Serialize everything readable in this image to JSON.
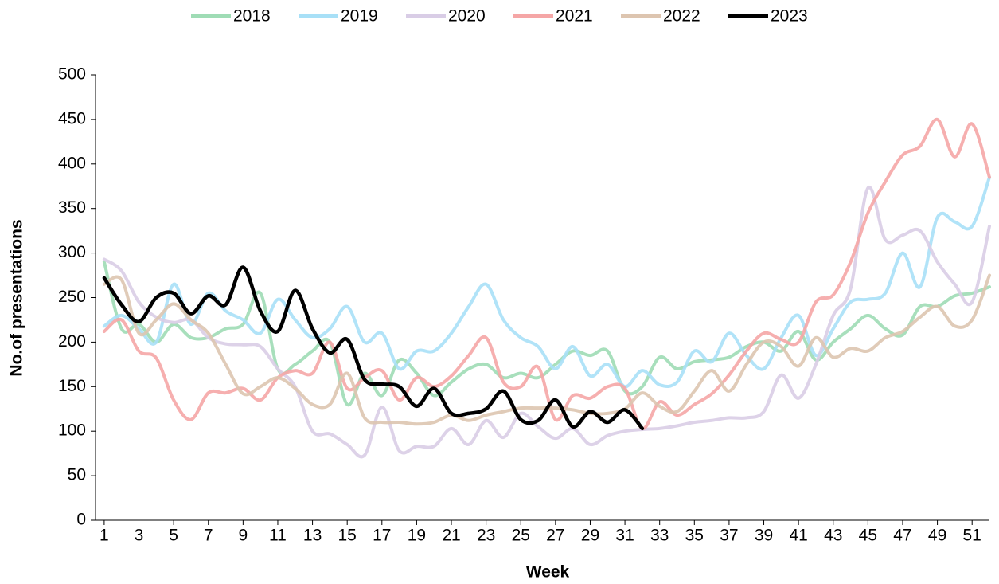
{
  "chart_data": {
    "type": "line",
    "xlabel": "Week",
    "ylabel": "No.of presentations",
    "x": [
      1,
      2,
      3,
      4,
      5,
      6,
      7,
      8,
      9,
      10,
      11,
      12,
      13,
      14,
      15,
      16,
      17,
      18,
      19,
      20,
      21,
      22,
      23,
      24,
      25,
      26,
      27,
      28,
      29,
      30,
      31,
      32,
      33,
      34,
      35,
      36,
      37,
      38,
      39,
      40,
      41,
      42,
      43,
      44,
      45,
      46,
      47,
      48,
      49,
      50,
      51,
      52
    ],
    "xlim": [
      0.5,
      52
    ],
    "xticks": [
      1,
      3,
      5,
      7,
      9,
      11,
      13,
      15,
      17,
      19,
      21,
      23,
      25,
      27,
      29,
      31,
      33,
      35,
      37,
      39,
      41,
      43,
      45,
      47,
      49,
      51
    ],
    "ylim": [
      0,
      500
    ],
    "yticks": [
      0,
      50,
      100,
      150,
      200,
      250,
      300,
      350,
      400,
      450,
      500
    ],
    "grid": false,
    "legend": "top",
    "series": [
      {
        "name": "2018",
        "color": "#9fdcb5",
        "values": [
          290,
          215,
          220,
          200,
          220,
          205,
          205,
          215,
          220,
          255,
          170,
          175,
          190,
          200,
          130,
          165,
          140,
          180,
          165,
          140,
          155,
          170,
          175,
          160,
          165,
          160,
          175,
          190,
          185,
          190,
          145,
          150,
          183,
          170,
          178,
          180,
          183,
          195,
          200,
          190,
          212,
          180,
          200,
          215,
          230,
          215,
          208,
          240,
          240,
          252,
          255,
          262
        ]
      },
      {
        "name": "2019",
        "color": "#a8e0f7",
        "values": [
          218,
          230,
          215,
          200,
          265,
          220,
          255,
          235,
          225,
          210,
          248,
          225,
          205,
          215,
          240,
          200,
          210,
          170,
          190,
          190,
          210,
          240,
          265,
          225,
          205,
          195,
          170,
          195,
          162,
          175,
          150,
          168,
          152,
          155,
          190,
          178,
          210,
          185,
          170,
          205,
          230,
          185,
          215,
          245,
          248,
          255,
          300,
          262,
          340,
          335,
          330,
          385
        ]
      },
      {
        "name": "2020",
        "color": "#d9cde6",
        "values": [
          293,
          280,
          245,
          228,
          222,
          225,
          205,
          198,
          197,
          195,
          170,
          150,
          100,
          97,
          85,
          73,
          127,
          78,
          83,
          83,
          103,
          85,
          112,
          93,
          120,
          105,
          92,
          103,
          85,
          95,
          100,
          102,
          103,
          106,
          110,
          112,
          115,
          115,
          122,
          163,
          137,
          175,
          230,
          260,
          373,
          315,
          320,
          325,
          290,
          265,
          245,
          330
        ]
      },
      {
        "name": "2021",
        "color": "#f5a6a6",
        "values": [
          212,
          225,
          190,
          182,
          135,
          113,
          143,
          143,
          148,
          135,
          160,
          168,
          165,
          200,
          148,
          160,
          168,
          135,
          160,
          150,
          162,
          185,
          205,
          155,
          150,
          172,
          113,
          140,
          137,
          150,
          148,
          103,
          133,
          118,
          130,
          142,
          163,
          190,
          210,
          203,
          200,
          245,
          253,
          290,
          345,
          380,
          410,
          420,
          450,
          408,
          445,
          385
        ]
      },
      {
        "name": "2022",
        "color": "#ddc5b0",
        "values": [
          265,
          270,
          210,
          225,
          243,
          225,
          210,
          175,
          142,
          150,
          160,
          148,
          130,
          130,
          165,
          115,
          110,
          110,
          108,
          110,
          118,
          112,
          118,
          122,
          126,
          126,
          126,
          124,
          120,
          120,
          125,
          143,
          128,
          122,
          145,
          168,
          145,
          175,
          200,
          195,
          173,
          205,
          183,
          193,
          190,
          205,
          212,
          228,
          240,
          218,
          225,
          275
        ]
      },
      {
        "name": "2023",
        "color": "#000000",
        "values": [
          272,
          242,
          223,
          250,
          255,
          232,
          252,
          242,
          284,
          235,
          212,
          258,
          215,
          188,
          203,
          158,
          153,
          150,
          128,
          148,
          120,
          120,
          125,
          145,
          113,
          112,
          135,
          105,
          122,
          110,
          124,
          103,
          null,
          null,
          null,
          null,
          null,
          null,
          null,
          null,
          null,
          null,
          null,
          null,
          null,
          null,
          null,
          null,
          null,
          null,
          null,
          null
        ]
      }
    ]
  }
}
